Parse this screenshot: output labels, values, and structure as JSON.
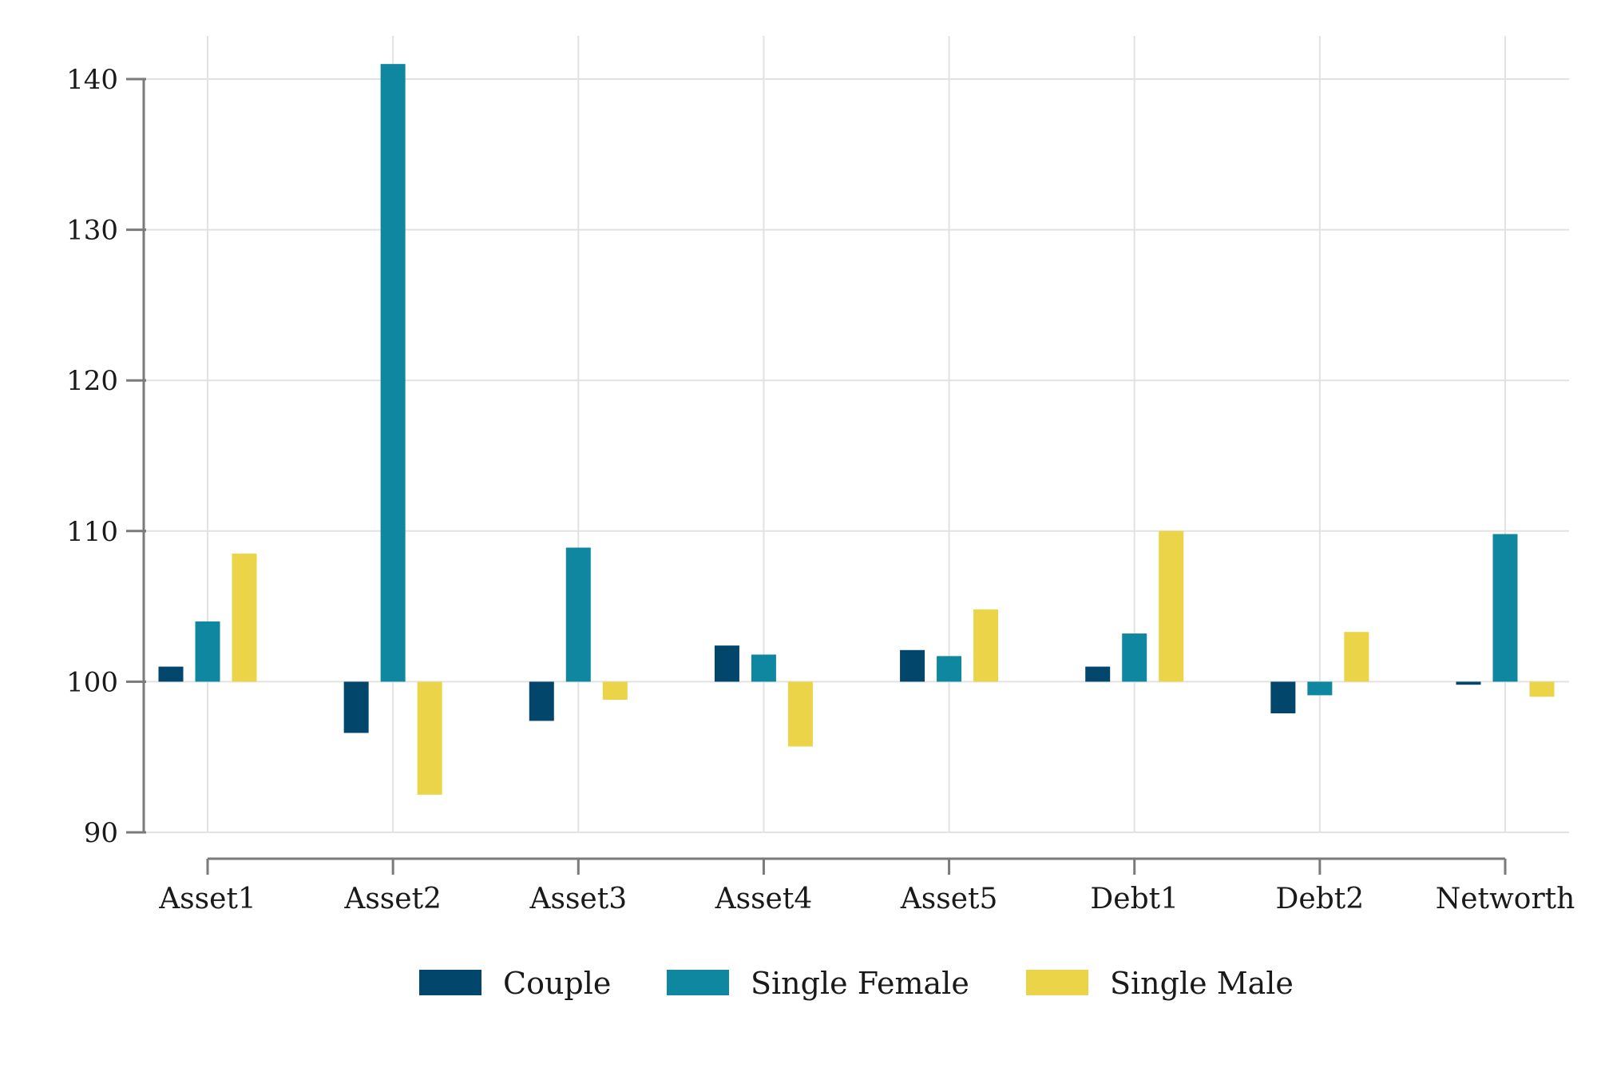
{
  "chart_data": {
    "type": "bar",
    "categories": [
      "Asset1",
      "Asset2",
      "Asset3",
      "Asset4",
      "Asset5",
      "Debt1",
      "Debt2",
      "Networth"
    ],
    "baseline": 100,
    "ylim": [
      90,
      140
    ],
    "yticks": [
      90,
      100,
      110,
      120,
      130,
      140
    ],
    "ytick_labels": [
      "90",
      "100",
      "110",
      "120",
      "130",
      "140"
    ],
    "grid": true,
    "legend_position": "bottom",
    "series": [
      {
        "name": "Couple",
        "color": "#03466c",
        "values": [
          101.0,
          96.6,
          97.4,
          102.4,
          102.1,
          101.0,
          97.9,
          99.8
        ]
      },
      {
        "name": "Single Female",
        "color": "#0f87a0",
        "values": [
          104.0,
          141.0,
          108.9,
          101.8,
          101.7,
          103.2,
          99.1,
          109.8
        ]
      },
      {
        "name": "Single Male",
        "color": "#ebd447",
        "values": [
          108.5,
          92.5,
          98.8,
          95.7,
          104.8,
          110.0,
          103.3,
          99.0
        ]
      }
    ]
  }
}
